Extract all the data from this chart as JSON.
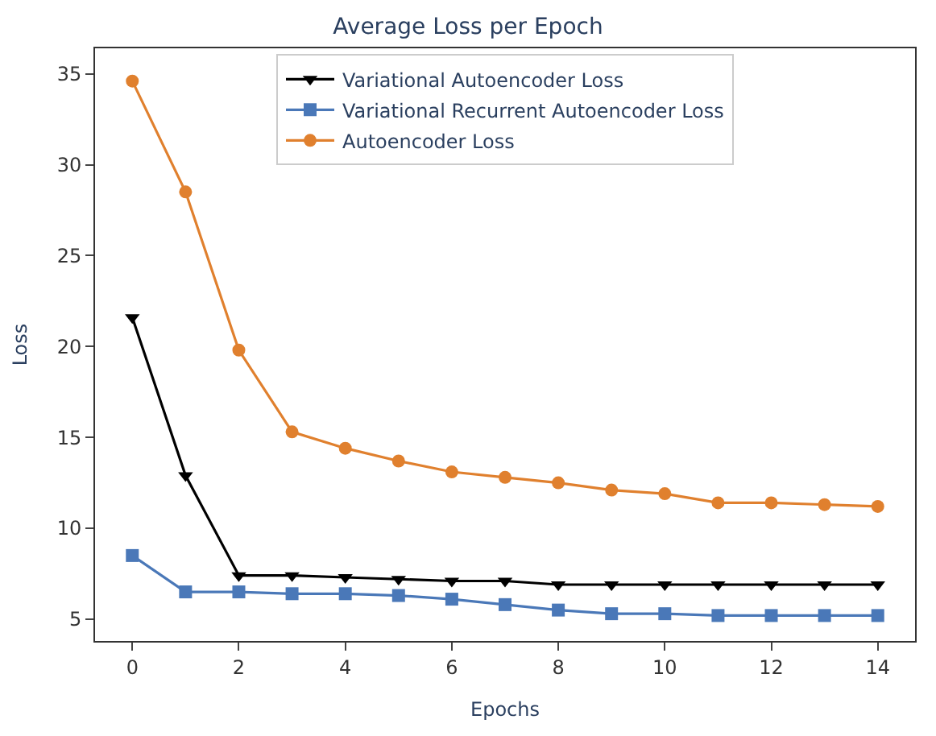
{
  "chart_data": {
    "type": "line",
    "title": "Average Loss per Epoch",
    "xlabel": "Epochs",
    "ylabel": "Loss",
    "x": [
      0,
      1,
      2,
      3,
      4,
      5,
      6,
      7,
      8,
      9,
      10,
      11,
      12,
      13,
      14
    ],
    "xlim": [
      -0.7,
      14.7
    ],
    "xticks": [
      0,
      2,
      4,
      6,
      8,
      10,
      12,
      14
    ],
    "ylim": [
      3.8,
      36.4
    ],
    "yticks": [
      5,
      10,
      15,
      20,
      25,
      30,
      35
    ],
    "legend": "top",
    "line_style": "solid",
    "series": [
      {
        "name": "Variational Autoencoder Loss",
        "color": "#000000",
        "marker": "triangle",
        "values": [
          21.6,
          12.9,
          7.4,
          7.4,
          7.3,
          7.2,
          7.1,
          7.1,
          6.9,
          6.9,
          6.9,
          6.9,
          6.9,
          6.9,
          6.9
        ]
      },
      {
        "name": "Variational Recurrent Autoencoder Loss",
        "color": "#4a78b8",
        "marker": "square",
        "values": [
          8.5,
          6.5,
          6.5,
          6.4,
          6.4,
          6.3,
          6.1,
          5.8,
          5.5,
          5.3,
          5.3,
          5.2,
          5.2,
          5.2,
          5.2
        ]
      },
      {
        "name": "Autoencoder Loss",
        "color": "#e0802e",
        "marker": "circle",
        "values": [
          34.6,
          28.5,
          19.8,
          15.3,
          14.4,
          13.7,
          13.1,
          12.8,
          12.5,
          12.1,
          11.9,
          11.4,
          11.4,
          11.3,
          11.2
        ]
      }
    ]
  }
}
